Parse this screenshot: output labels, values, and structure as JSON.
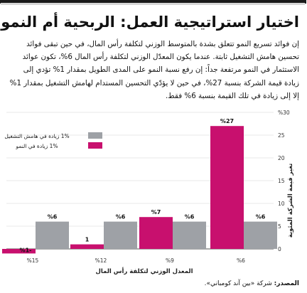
{
  "header": {
    "title": "اختيار استراتيجية العمل: الربحية أم النمو؟",
    "intro": "إن فوائد تسريع النمو تتعلق بشدة بالمتوسط الوزني لتكلفة رأس المال، في حين تبقى فوائد تحسين هامش التشغيل ثابتة. عندما يكون المعدّل الوزني لتكلفة رأس المال 6%، تكون عوائد الاستثمار في النمو مرتفعة جداً: إن رفع نسبة النمو على المدى الطويل بمقدار 1% تؤدي إلى زيادة قيمة الشركة بنسبة 27%، في حين لا يؤدّي التحسين المستدام لهامش التشغيل بمقدار 1% إلا إلى زيادة في تلك القيمة بنسبة 6% فقط."
  },
  "source": {
    "label": "المصدر:",
    "text": "شركة «بين آند كومباني»."
  },
  "colors": {
    "growth": "#c8106e",
    "margin": "#9ea1a6",
    "axis": "#555555",
    "grid": "#e3e3e3"
  },
  "chart_data": {
    "type": "bar",
    "categories": [
      "%6",
      "%9",
      "%12",
      "%15"
    ],
    "series": [
      {
        "name": "1% زيادة في النمو",
        "values": [
          27,
          7,
          1,
          -1
        ],
        "labels": [
          "%27",
          "%7",
          "1",
          "%1-"
        ]
      },
      {
        "name": "1% زيادة في هامش التشغيل",
        "values": [
          6,
          6,
          6,
          6
        ],
        "labels": [
          "%6",
          "%6",
          "%6",
          "%6"
        ]
      }
    ],
    "xlabel": "المعدل الوزني لتكلفة رأس المال",
    "ylabel": "تغير قيمة الشركة المئوية",
    "ylim": [
      -1,
      30
    ],
    "yticks": [
      0,
      5,
      10,
      15,
      20,
      25,
      30
    ],
    "ytick_labels": [
      "0",
      "5",
      "10",
      "15",
      "20",
      "25",
      "%30"
    ],
    "grid": true,
    "legend_position": "top-left"
  }
}
